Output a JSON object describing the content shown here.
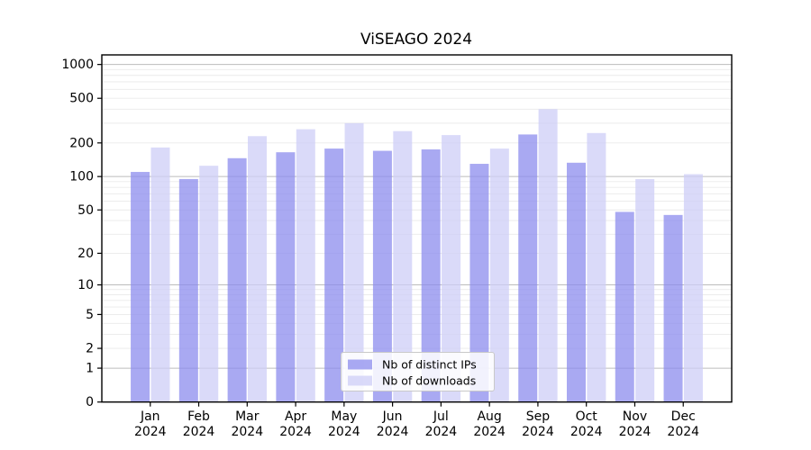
{
  "chart_data": {
    "type": "bar",
    "title": "ViSEAGO 2024",
    "categories": [
      {
        "label": "Jan",
        "year": "2024"
      },
      {
        "label": "Feb",
        "year": "2024"
      },
      {
        "label": "Mar",
        "year": "2024"
      },
      {
        "label": "Apr",
        "year": "2024"
      },
      {
        "label": "May",
        "year": "2024"
      },
      {
        "label": "Jun",
        "year": "2024"
      },
      {
        "label": "Jul",
        "year": "2024"
      },
      {
        "label": "Aug",
        "year": "2024"
      },
      {
        "label": "Sep",
        "year": "2024"
      },
      {
        "label": "Oct",
        "year": "2024"
      },
      {
        "label": "Nov",
        "year": "2024"
      },
      {
        "label": "Dec",
        "year": "2024"
      }
    ],
    "series": [
      {
        "name": "Nb of distinct IPs",
        "color": "#8c8cee",
        "fill_opacity": 0.75,
        "values": [
          110,
          95,
          146,
          165,
          178,
          170,
          175,
          130,
          238,
          133,
          48,
          45
        ]
      },
      {
        "name": "Nb of downloads",
        "color": "#cdcdf7",
        "fill_opacity": 0.75,
        "values": [
          182,
          125,
          230,
          265,
          300,
          255,
          235,
          178,
          400,
          245,
          95,
          105
        ]
      }
    ],
    "yscale": "log10(v+1)",
    "yticks": [
      0,
      1,
      2,
      5,
      10,
      20,
      50,
      100,
      200,
      500,
      1000
    ],
    "major_grid_values": [
      1,
      10,
      100,
      1000
    ],
    "ylim": [
      0,
      1220
    ],
    "grid": true,
    "legend_position": "bottom-center",
    "colors": {
      "major_grid": "#bcbcbc",
      "minor_grid": "#eaeaea",
      "spine": "#000000",
      "legend_border": "#c9c9c9",
      "legend_background": "#ffffff"
    }
  }
}
